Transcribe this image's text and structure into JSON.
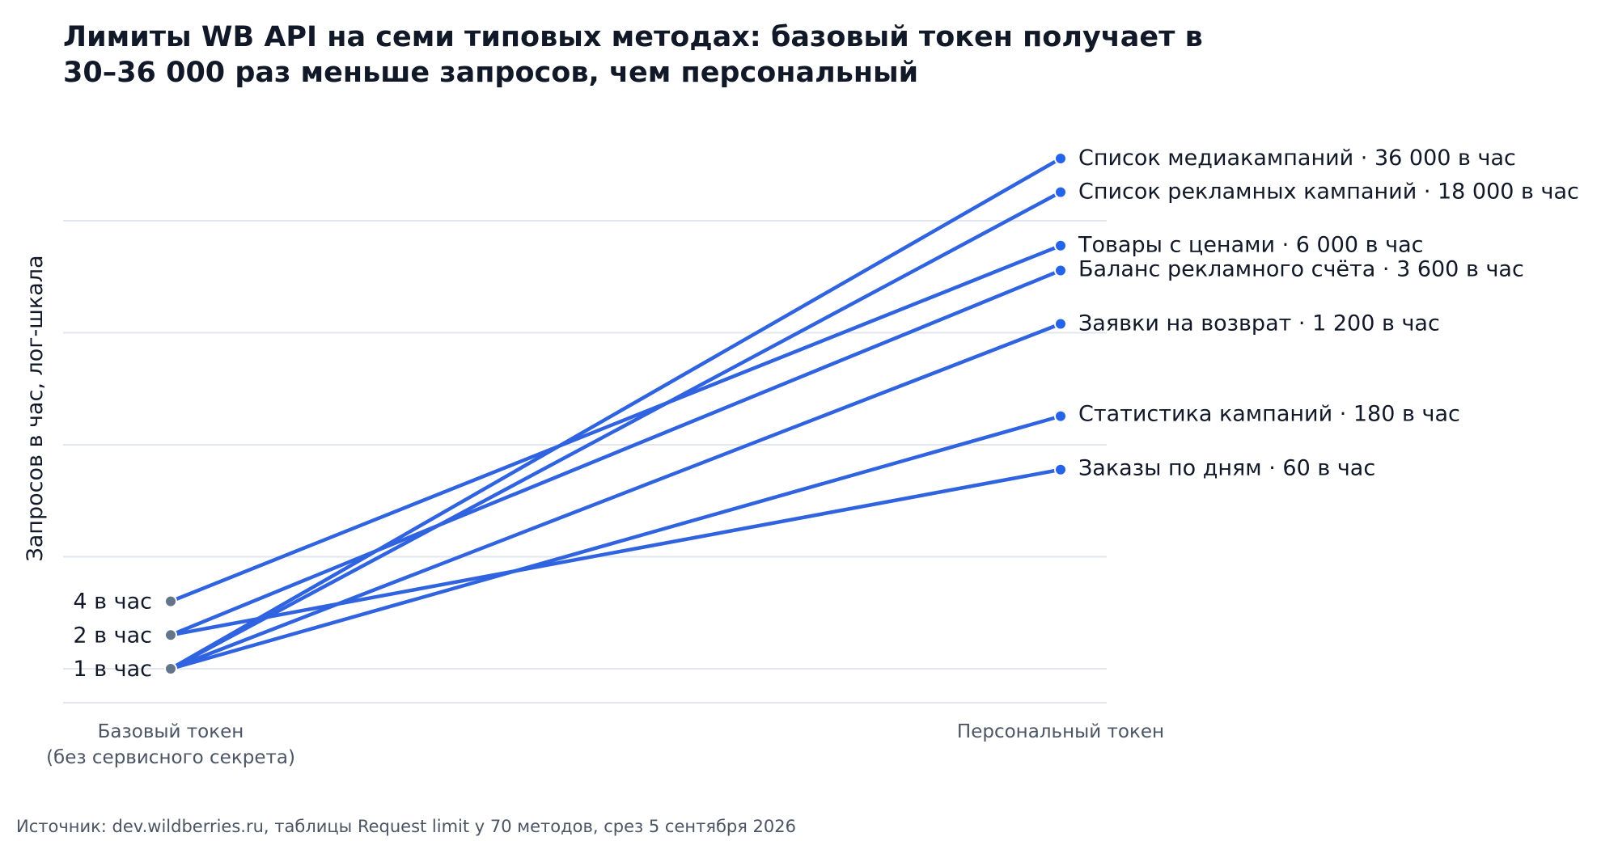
{
  "title_lines": [
    "Лимиты WB API на семи типовых методах: базовый токен получает в",
    "30–36 000 раз меньше запросов, чем персональный"
  ],
  "source": "Источник: dev.wildberries.ru, таблицы Request limit у 70 методов, срез 5 сентября 2026",
  "colors": {
    "line": "#2f63e0",
    "right_dot": "#2563eb",
    "left_dot": "#64748b",
    "grid": "#e2e6ee",
    "text": "#111827",
    "muted": "#4b5563"
  },
  "chart_data": {
    "type": "line",
    "ylabel": "Запросов в час, лог-шкала",
    "y_scale": "log",
    "x_categories": [
      "Базовый токен\n(без сервисного секрета)",
      "Персональный токен"
    ],
    "left_labels": [
      "4 в час",
      "2 в час",
      "1 в час"
    ],
    "series": [
      {
        "label": "Список медиакампаний · 36 000 в час",
        "values": [
          1,
          36000
        ]
      },
      {
        "label": "Список рекламных кампаний · 18 000 в час",
        "values": [
          1,
          18000
        ]
      },
      {
        "label": "Товары с ценами · 6 000 в час",
        "values": [
          4,
          6000
        ]
      },
      {
        "label": "Баланс рекламного счёта · 3 600 в час",
        "values": [
          2,
          3600
        ]
      },
      {
        "label": "Заявки на возврат · 1 200 в час",
        "values": [
          1,
          1200
        ]
      },
      {
        "label": "Статистика кампаний · 180 в час",
        "values": [
          1,
          180
        ]
      },
      {
        "label": "Заказы по дням · 60 в час",
        "values": [
          2,
          60
        ]
      }
    ]
  }
}
